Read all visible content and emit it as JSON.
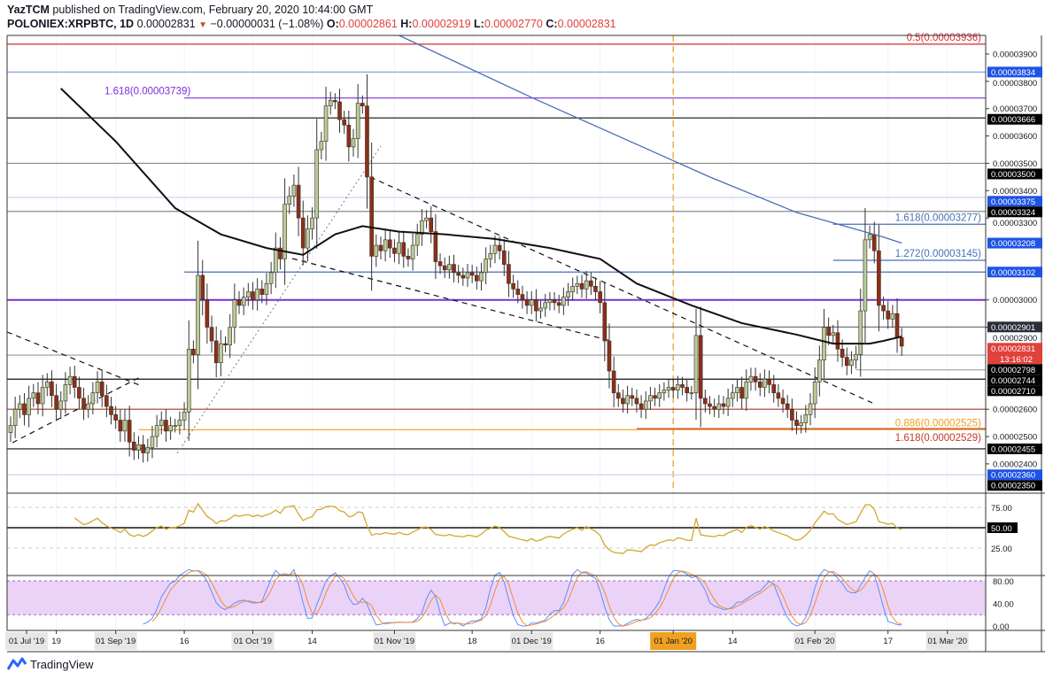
{
  "header": {
    "publisher": "YazTCM",
    "published_text": "published on TradingView.com, February 20, 2020 10:44:00 GMT",
    "symbol": "POLONIEX:XRPBTC, 1D",
    "last": "0.00002831",
    "change": "−0.00000031 (−1.08%)",
    "o_label": "O:",
    "o": "0.00002861",
    "h_label": "H:",
    "h": "0.00002919",
    "l_label": "L:",
    "l": "0.00002770",
    "c_label": "C:",
    "c": "0.00002831",
    "direction_icon": "triangle-down"
  },
  "footer": {
    "brand": "TradingView"
  },
  "colors": {
    "bull": "#b9cc9c",
    "bear": "#8c2f1c",
    "candle_border": "#3b2a1a",
    "ma_black": "#111111",
    "ma_blue": "#4a6fb5",
    "rsi": "#d4a72c",
    "stoch_k": "#5b8ff9",
    "stoch_d": "#f08c3c",
    "stoch_band": "#e6c8f5",
    "current_price": "#e0413a",
    "jan_marker": "#f0a020"
  },
  "chart_data": {
    "type": "candlestick",
    "symbol": "POLONIEX:XRPBTC",
    "interval": "1D",
    "dates": [
      "2019-08-09",
      "2019-08-10",
      "2019-08-11",
      "2019-08-12",
      "2019-08-13",
      "2019-08-14",
      "2019-08-15",
      "2019-08-16",
      "2019-08-17",
      "2019-08-18",
      "2019-08-19",
      "2019-08-20",
      "2019-08-21",
      "2019-08-22",
      "2019-08-23",
      "2019-08-24",
      "2019-08-25",
      "2019-08-26",
      "2019-08-27",
      "2019-08-28",
      "2019-08-29",
      "2019-08-30",
      "2019-08-31",
      "2019-09-01",
      "2019-09-02",
      "2019-09-03",
      "2019-09-04",
      "2019-09-05",
      "2019-09-06",
      "2019-09-07",
      "2019-09-08",
      "2019-09-09",
      "2019-09-10",
      "2019-09-11",
      "2019-09-12",
      "2019-09-13",
      "2019-09-14",
      "2019-09-15",
      "2019-09-16",
      "2019-09-17",
      "2019-09-18",
      "2019-09-19",
      "2019-09-20",
      "2019-09-21",
      "2019-09-22",
      "2019-09-23",
      "2019-09-24",
      "2019-09-25",
      "2019-09-26",
      "2019-09-27",
      "2019-09-28",
      "2019-09-29",
      "2019-09-30",
      "2019-10-01",
      "2019-10-02",
      "2019-10-03",
      "2019-10-04",
      "2019-10-05",
      "2019-10-06",
      "2019-10-07",
      "2019-10-08",
      "2019-10-09",
      "2019-10-10",
      "2019-10-11",
      "2019-10-12",
      "2019-10-13",
      "2019-10-14",
      "2019-10-15",
      "2019-10-16",
      "2019-10-17",
      "2019-10-18",
      "2019-10-19",
      "2019-10-20",
      "2019-10-21",
      "2019-10-22",
      "2019-10-23",
      "2019-10-24",
      "2019-10-25",
      "2019-10-26",
      "2019-10-27",
      "2019-10-28",
      "2019-10-29",
      "2019-10-30",
      "2019-10-31",
      "2019-11-01",
      "2019-11-02",
      "2019-11-03",
      "2019-11-04",
      "2019-11-05",
      "2019-11-06",
      "2019-11-07",
      "2019-11-08",
      "2019-11-09",
      "2019-11-10",
      "2019-11-11",
      "2019-11-12",
      "2019-11-13",
      "2019-11-14",
      "2019-11-15",
      "2019-11-16",
      "2019-11-17",
      "2019-11-18",
      "2019-11-19",
      "2019-11-20",
      "2019-11-21",
      "2019-11-22",
      "2019-11-23",
      "2019-11-24",
      "2019-11-25",
      "2019-11-26",
      "2019-11-27",
      "2019-11-28",
      "2019-11-29",
      "2019-11-30",
      "2019-12-01",
      "2019-12-02",
      "2019-12-03",
      "2019-12-04",
      "2019-12-05",
      "2019-12-06",
      "2019-12-07",
      "2019-12-08",
      "2019-12-09",
      "2019-12-10",
      "2019-12-11",
      "2019-12-12",
      "2019-12-13",
      "2019-12-14",
      "2019-12-15",
      "2019-12-16",
      "2019-12-17",
      "2019-12-18",
      "2019-12-19",
      "2019-12-20",
      "2019-12-21",
      "2019-12-22",
      "2019-12-23",
      "2019-12-24",
      "2019-12-25",
      "2019-12-26",
      "2019-12-27",
      "2019-12-28",
      "2019-12-29",
      "2019-12-30",
      "2019-12-31",
      "2020-01-01",
      "2020-01-02",
      "2020-01-03",
      "2020-01-04",
      "2020-01-05",
      "2020-01-06",
      "2020-01-07",
      "2020-01-08",
      "2020-01-09",
      "2020-01-10",
      "2020-01-11",
      "2020-01-12",
      "2020-01-13",
      "2020-01-14",
      "2020-01-15",
      "2020-01-16",
      "2020-01-17",
      "2020-01-18",
      "2020-01-19",
      "2020-01-20",
      "2020-01-21",
      "2020-01-22",
      "2020-01-23",
      "2020-01-24",
      "2020-01-25",
      "2020-01-26",
      "2020-01-27",
      "2020-01-28",
      "2020-01-29",
      "2020-01-30",
      "2020-01-31",
      "2020-02-01",
      "2020-02-02",
      "2020-02-03",
      "2020-02-04",
      "2020-02-05",
      "2020-02-06",
      "2020-02-07",
      "2020-02-08",
      "2020-02-09",
      "2020-02-10",
      "2020-02-11",
      "2020-02-12",
      "2020-02-13",
      "2020-02-14",
      "2020-02-15",
      "2020-02-16",
      "2020-02-17",
      "2020-02-18",
      "2020-02-19",
      "2020-02-20"
    ],
    "close": [
      2.54e-05,
      2.6e-05,
      2.62e-05,
      2.58e-05,
      2.64e-05,
      2.66e-05,
      2.62e-05,
      2.68e-05,
      2.7e-05,
      2.65e-05,
      2.6e-05,
      2.63e-05,
      2.69e-05,
      2.72e-05,
      2.68e-05,
      2.64e-05,
      2.6e-05,
      2.62e-05,
      2.66e-05,
      2.7e-05,
      2.65e-05,
      2.61e-05,
      2.58e-05,
      2.56e-05,
      2.52e-05,
      2.56e-05,
      2.48e-05,
      2.45e-05,
      2.47e-05,
      2.44e-05,
      2.46e-05,
      2.5e-05,
      2.54e-05,
      2.56e-05,
      2.52e-05,
      2.54e-05,
      2.54e-05,
      2.56e-05,
      2.59e-05,
      2.82e-05,
      2.8e-05,
      3.09e-05,
      3e-05,
      2.9e-05,
      2.85e-05,
      2.77e-05,
      2.84e-05,
      2.835e-05,
      2.9e-05,
      3e-05,
      2.98e-05,
      3.01e-05,
      3.03e-05,
      3e-05,
      3.04e-05,
      3.02e-05,
      3.06e-05,
      3.1e-05,
      3.19e-05,
      3.15e-05,
      3.35e-05,
      3.38e-05,
      3.42e-05,
      3.3e-05,
      3.19e-05,
      3.26e-05,
      3.3e-05,
      3.55e-05,
      3.58e-05,
      3.71e-05,
      3.73e-05,
      3.725e-05,
      3.66e-05,
      3.64e-05,
      3.56e-05,
      3.59e-05,
      3.72e-05,
      3.71e-05,
      3.45e-05,
      3.16e-05,
      3.2e-05,
      3.18e-05,
      3.22e-05,
      3.19e-05,
      3.17e-05,
      3.21e-05,
      3.16e-05,
      3.15e-05,
      3.2e-05,
      3.24e-05,
      3.29e-05,
      3.3e-05,
      3.25e-05,
      3.14e-05,
      3.125e-05,
      3.11e-05,
      3.13e-05,
      3.1e-05,
      3.09e-05,
      3.08e-05,
      3.1e-05,
      3.09e-05,
      3.07e-05,
      3.1e-05,
      3.15e-05,
      3.17e-05,
      3.2e-05,
      3.18e-05,
      3.13e-05,
      3.06e-05,
      3.04e-05,
      3.02e-05,
      3e-05,
      2.98e-05,
      3e-05,
      2.96e-05,
      2.97e-05,
      2.99e-05,
      3e-05,
      2.99e-05,
      2.98e-05,
      3.01e-05,
      3.03e-05,
      3.05e-05,
      3.06e-05,
      3.04e-05,
      3.07e-05,
      3.05e-05,
      3.03e-05,
      2.99e-05,
      2.85e-05,
      2.74e-05,
      2.66e-05,
      2.64e-05,
      2.62e-05,
      2.65e-05,
      2.64e-05,
      2.62e-05,
      2.6e-05,
      2.63e-05,
      2.65e-05,
      2.64e-05,
      2.66e-05,
      2.67e-05,
      2.68e-05,
      2.67e-05,
      2.69e-05,
      2.68e-05,
      2.66e-05,
      2.66e-05,
      2.87e-05,
      2.64e-05,
      2.62e-05,
      2.61e-05,
      2.6e-05,
      2.62e-05,
      2.61e-05,
      2.64e-05,
      2.66e-05,
      2.68e-05,
      2.64e-05,
      2.7e-05,
      2.72e-05,
      2.7e-05,
      2.68e-05,
      2.71e-05,
      2.69e-05,
      2.66e-05,
      2.64e-05,
      2.62e-05,
      2.6e-05,
      2.56e-05,
      2.54e-05,
      2.55e-05,
      2.58e-05,
      2.62e-05,
      2.7e-05,
      2.78e-05,
      2.9e-05,
      2.87e-05,
      2.88e-05,
      2.82e-05,
      2.79e-05,
      2.76e-05,
      2.78e-05,
      2.8e-05,
      2.96e-05,
      3.22e-05,
      3.24e-05,
      3.18e-05,
      2.98e-05,
      2.96e-05,
      2.93e-05,
      2.95e-05,
      2.862e-05,
      2.831e-05
    ],
    "moving_averages": [
      {
        "color": "#111111",
        "points": [
          [
            "2019-08-20",
            3.774e-05
          ],
          [
            "2019-09-01",
            3.58e-05
          ],
          [
            "2019-09-14",
            3.336e-05
          ],
          [
            "2019-09-24",
            3.24e-05
          ],
          [
            "2019-10-04",
            3.19e-05
          ],
          [
            "2019-10-12",
            3.165e-05
          ],
          [
            "2019-10-19",
            3.24e-05
          ],
          [
            "2019-10-25",
            3.27e-05
          ],
          [
            "2019-11-02",
            3.25e-05
          ],
          [
            "2019-11-12",
            3.24e-05
          ],
          [
            "2019-11-23",
            3.223e-05
          ],
          [
            "2019-12-05",
            3.19e-05
          ],
          [
            "2019-12-16",
            3.15e-05
          ],
          [
            "2019-12-24",
            3.06e-05
          ],
          [
            "2020-01-05",
            2.98e-05
          ],
          [
            "2020-01-16",
            2.915e-05
          ],
          [
            "2020-01-28",
            2.873e-05
          ],
          [
            "2020-02-05",
            2.84e-05
          ],
          [
            "2020-02-13",
            2.84e-05
          ],
          [
            "2020-02-16",
            2.85e-05
          ],
          [
            "2020-02-20",
            2.866e-05
          ]
        ]
      },
      {
        "color": "#4a6fb5",
        "points": [
          [
            "2019-11-02",
            3.968e-05
          ],
          [
            "2019-12-01",
            3.741e-05
          ],
          [
            "2020-01-09",
            3.45e-05
          ],
          [
            "2020-01-28",
            3.32e-05
          ],
          [
            "2020-02-16",
            3.23e-05
          ],
          [
            "2020-02-20",
            3.208e-05
          ]
        ]
      }
    ],
    "current_price": {
      "value": "0.00002831",
      "countdown": "13:16:02"
    },
    "levels": [
      {
        "value": 3.936e-05,
        "fib": "0.5(0.00003936)",
        "color": "#d32f2f",
        "axis_label": ""
      },
      {
        "value": 3.834e-05,
        "color": "#8da2d8",
        "axis_label": "0.00003834",
        "label_bg": "#1e53e5"
      },
      {
        "value": 3.739e-05,
        "fib": "1.618(0.00003739)",
        "color": "#7b2fdc",
        "axis_label": "",
        "from": "2019-09-16"
      },
      {
        "value": 3.666e-05,
        "color": "#111111",
        "axis_label": "0.00003666",
        "label_bg": "#000000"
      },
      {
        "value": 3.5e-05,
        "color": "#888888",
        "axis_label": "0.00003500",
        "label_bg": "#000000"
      },
      {
        "value": 3.375e-05,
        "color": "#c9d4f0",
        "axis_label": "0.00003375",
        "label_bg": "#1e53e5"
      },
      {
        "value": 3.324e-05,
        "color": "#888888",
        "axis_label": "0.00003324",
        "label_bg": "#000000"
      },
      {
        "value": 3.277e-05,
        "fib": "1.618(0.00003277)",
        "color": "#4a6fb5",
        "axis_label": "",
        "from": "2020-02-05"
      },
      {
        "value": 3.208e-05,
        "color": "",
        "axis_label": "0.00003208",
        "label_bg": "#1e53e5"
      },
      {
        "value": 3.145e-05,
        "fib": "1.272(0.00003145)",
        "color": "#4a6fb5",
        "axis_label": "",
        "from": "2020-02-05"
      },
      {
        "value": 3.102e-05,
        "color": "#4a6fb5",
        "axis_label": "0.00003102",
        "label_bg": "#1e53e5",
        "from": "2019-09-16"
      },
      {
        "value": 3e-05,
        "color": "#7b2fdc",
        "axis_label": "",
        "thick": true
      },
      {
        "value": 2.901e-05,
        "color": "#666666",
        "axis_label": "0.00002901",
        "label_bg": "#2a2e39",
        "from": "2019-09-28"
      },
      {
        "value": 2.798e-05,
        "color": "#999999",
        "axis_label": "0.00002798",
        "label_bg": "#000000"
      },
      {
        "value": 2.744e-05,
        "color": "#aaaaaa",
        "axis_label": "0.00002744",
        "label_bg": "#000000",
        "from": "2020-02-10"
      },
      {
        "value": 2.71e-05,
        "color": "#111111",
        "axis_label": "0.00002710",
        "label_bg": "#000000"
      },
      {
        "value": 2.6e-05,
        "color": "#a23a2a",
        "axis_label": ""
      },
      {
        "value": 2.529e-05,
        "fib": "1.618(0.00002529)",
        "color": "#c0392b",
        "axis_label": "",
        "from": "2019-12-24"
      },
      {
        "value": 2.525e-05,
        "fib": "0.886(0.00002525)",
        "color": "#f0a020",
        "axis_label": "",
        "from": "2019-09-06"
      },
      {
        "value": 2.455e-05,
        "color": "#111111",
        "axis_label": "0.00002455",
        "label_bg": "#000000"
      },
      {
        "value": 2.36e-05,
        "color": "#c9d4f0",
        "axis_label": "0.00002360",
        "label_bg": "#1e53e5"
      },
      {
        "value": 2.35e-05,
        "color": "",
        "axis_label": "0.00002350",
        "label_bg": "#000000"
      }
    ],
    "price_axis_ticks": [
      "0.00003900",
      "0.00003800",
      "0.00003700",
      "0.00003600",
      "0.00003500",
      "0.00003400",
      "0.00003300",
      "0.00003000",
      "0.00002900",
      "0.00002600",
      "0.00002500",
      "0.00002400"
    ],
    "time_axis_ticks": [
      {
        "label": "01 Jul '19",
        "date": null
      },
      {
        "label": "19",
        "date": "2019-08-19"
      },
      {
        "label": "01 Sep '19",
        "date": "2019-09-01",
        "major": true
      },
      {
        "label": "16",
        "date": "2019-09-16"
      },
      {
        "label": "01 Oct '19",
        "date": "2019-10-01",
        "major": true
      },
      {
        "label": "14",
        "date": "2019-10-14"
      },
      {
        "label": "01 Nov '19",
        "date": "2019-11-01",
        "major": true
      },
      {
        "label": "18",
        "date": "2019-11-18"
      },
      {
        "label": "01 Dec '19",
        "date": "2019-12-01",
        "major": true
      },
      {
        "label": "16",
        "date": "2019-12-16"
      },
      {
        "label": "01 Jan '20",
        "date": "2020-01-01",
        "highlight": true
      },
      {
        "label": "14",
        "date": "2020-01-14"
      },
      {
        "label": "01 Feb '20",
        "date": "2020-02-01",
        "major": true
      },
      {
        "label": "17",
        "date": "2020-02-17"
      },
      {
        "label": "01 Mar '20",
        "date": "2020-03-01",
        "major": true
      }
    ],
    "rsi": {
      "period": 14,
      "ticks": [
        "75.00",
        "50.00",
        "25.00"
      ],
      "highlight": "50.00"
    },
    "stoch_rsi": {
      "ticks": [
        "80.00",
        "40.00",
        "0.00"
      ],
      "band": [
        20,
        80
      ]
    }
  }
}
